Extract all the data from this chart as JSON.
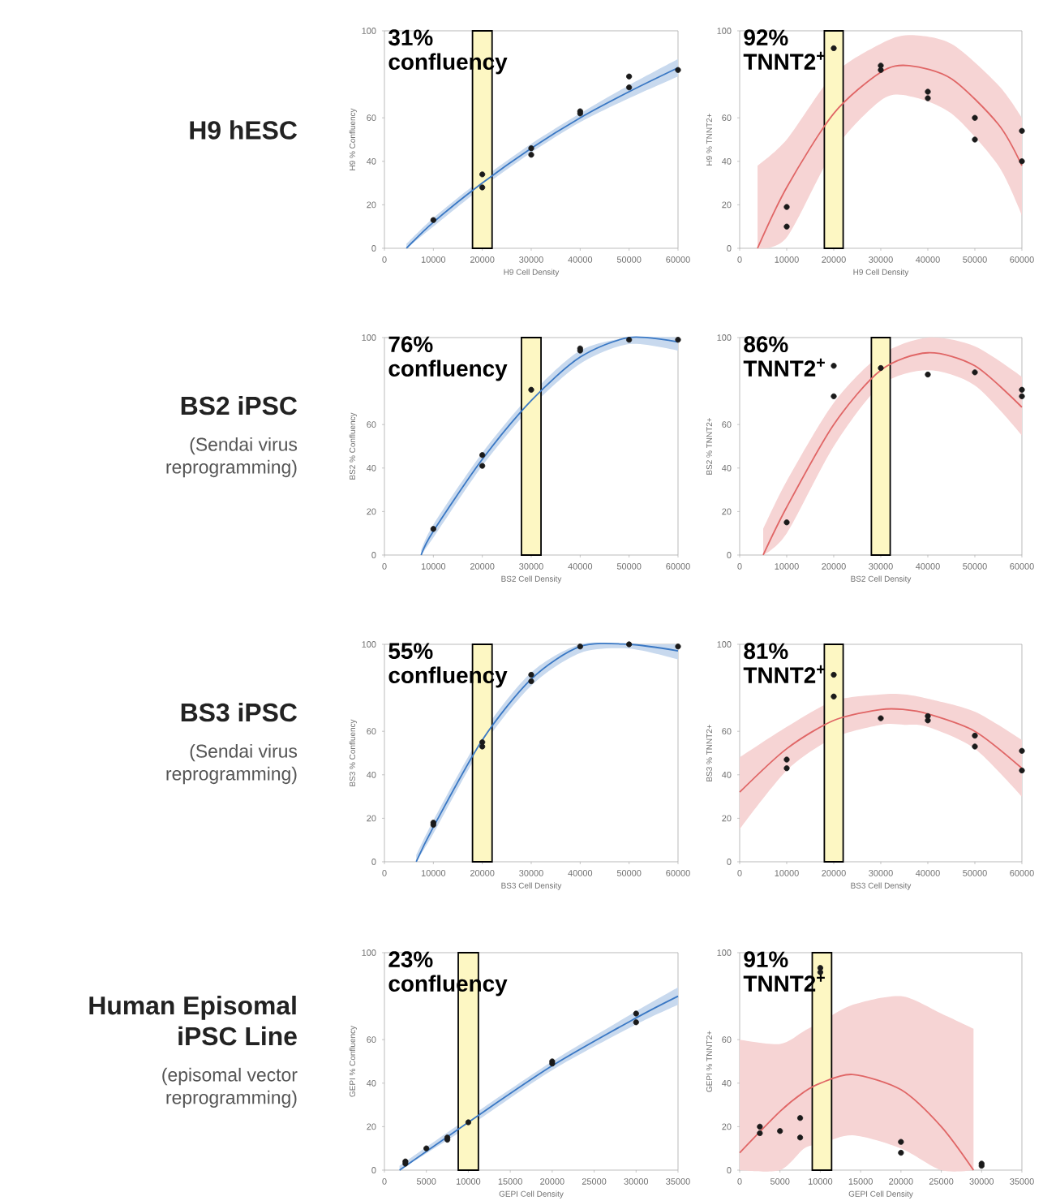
{
  "chart_data": [
    {
      "type": "scatter",
      "title": "H9 hESC",
      "xlabel": "H9 Cell Density",
      "ylabel": "H9 % Confluency",
      "xlim": [
        0,
        60000
      ],
      "ylim": [
        0,
        100
      ],
      "xticks": [
        0,
        10000,
        20000,
        30000,
        40000,
        50000,
        60000
      ],
      "yticks": [
        0,
        20,
        40,
        60,
        100
      ],
      "bands": [
        {
          "axis": "x",
          "from": 18000,
          "to": 22000,
          "label": "31% confluency",
          "color": "#fdf7c3"
        }
      ],
      "series": [
        {
          "type": "line",
          "color": "#3a78c4",
          "x": [
            4500,
            10000,
            20000,
            30000,
            40000,
            50000,
            60000
          ],
          "values": [
            0,
            12,
            30,
            46,
            60,
            72,
            83
          ],
          "lower": [
            0,
            10,
            28,
            44,
            58,
            69,
            79
          ],
          "upper": [
            2,
            14,
            32,
            48,
            62,
            75,
            87
          ]
        },
        {
          "type": "scatter",
          "color": "#1a1a1a",
          "x": [
            10000,
            20000,
            20000,
            30000,
            30000,
            40000,
            40000,
            50000,
            50000,
            60000
          ],
          "values": [
            13,
            34,
            28,
            46,
            43,
            63,
            62,
            79,
            74,
            82
          ]
        }
      ]
    },
    {
      "type": "scatter",
      "xlabel": "H9 Cell Density",
      "ylabel": "H9 % TNNT2+",
      "xlim": [
        0,
        60000
      ],
      "ylim": [
        0,
        100
      ],
      "xticks": [
        0,
        10000,
        20000,
        30000,
        40000,
        50000,
        60000
      ],
      "yticks": [
        0,
        20,
        40,
        60,
        100
      ],
      "bands": [
        {
          "axis": "x",
          "from": 18000,
          "to": 22000,
          "label": "92% TNNT2$^{+}$",
          "color": "#fdf7c3"
        }
      ],
      "series": [
        {
          "type": "line",
          "color": "#e06666",
          "x": [
            3800,
            10000,
            20000,
            30000,
            36000,
            45000,
            55000,
            60000
          ],
          "values": [
            0,
            28,
            62,
            81,
            84,
            78,
            57,
            38
          ],
          "lower": [
            0,
            5,
            45,
            68,
            70,
            62,
            38,
            15
          ],
          "upper": [
            38,
            50,
            80,
            94,
            98,
            94,
            75,
            60
          ]
        },
        {
          "type": "scatter",
          "color": "#1a1a1a",
          "x": [
            10000,
            10000,
            20000,
            30000,
            30000,
            40000,
            40000,
            50000,
            50000,
            60000,
            60000
          ],
          "values": [
            19,
            10,
            92,
            84,
            82,
            72,
            69,
            60,
            50,
            54,
            40
          ]
        }
      ]
    },
    {
      "type": "scatter",
      "title": "BS2 iPSC",
      "subtitle": "(Sendai virus reprogramming)",
      "xlabel": "BS2 Cell Density",
      "ylabel": "BS2 % Confluency",
      "xlim": [
        0,
        60000
      ],
      "ylim": [
        0,
        100
      ],
      "xticks": [
        0,
        10000,
        20000,
        30000,
        40000,
        50000,
        60000
      ],
      "yticks": [
        0,
        20,
        40,
        60,
        100
      ],
      "bands": [
        {
          "axis": "x",
          "from": 28000,
          "to": 32000,
          "label": "76% confluency",
          "color": "#fdf7c3"
        }
      ],
      "series": [
        {
          "type": "line",
          "color": "#3a78c4",
          "x": [
            7500,
            10000,
            20000,
            30000,
            40000,
            50000,
            60000
          ],
          "values": [
            0,
            11,
            44,
            71,
            91,
            100,
            98
          ],
          "lower": [
            0,
            8,
            41,
            68,
            88,
            97,
            94
          ],
          "upper": [
            2,
            14,
            47,
            74,
            94,
            100,
            100
          ]
        },
        {
          "type": "scatter",
          "color": "#1a1a1a",
          "x": [
            10000,
            20000,
            20000,
            30000,
            40000,
            40000,
            50000,
            60000
          ],
          "values": [
            12,
            46,
            41,
            76,
            95,
            94,
            99,
            99
          ]
        }
      ]
    },
    {
      "type": "scatter",
      "xlabel": "BS2 Cell Density",
      "ylabel": "BS2 % TNNT2+",
      "xlim": [
        0,
        60000
      ],
      "ylim": [
        0,
        100
      ],
      "xticks": [
        0,
        10000,
        20000,
        30000,
        40000,
        50000,
        60000
      ],
      "yticks": [
        0,
        20,
        40,
        60,
        100
      ],
      "bands": [
        {
          "axis": "x",
          "from": 28000,
          "to": 32000,
          "label": "86% TNNT2$^{+}$",
          "color": "#fdf7c3"
        }
      ],
      "series": [
        {
          "type": "line",
          "color": "#e06666",
          "x": [
            5000,
            10000,
            20000,
            30000,
            40000,
            50000,
            60000
          ],
          "values": [
            0,
            22,
            60,
            85,
            93,
            87,
            68
          ],
          "lower": [
            0,
            10,
            50,
            78,
            85,
            78,
            55
          ],
          "upper": [
            12,
            34,
            70,
            92,
            100,
            96,
            82
          ]
        },
        {
          "type": "scatter",
          "color": "#1a1a1a",
          "x": [
            10000,
            20000,
            20000,
            30000,
            40000,
            50000,
            60000,
            60000
          ],
          "values": [
            15,
            87,
            73,
            86,
            83,
            84,
            76,
            73
          ]
        }
      ]
    },
    {
      "type": "scatter",
      "title": "BS3 iPSC",
      "subtitle": "(Sendai virus reprogramming)",
      "xlabel": "BS3 Cell Density",
      "ylabel": "BS3 % Confluency",
      "xlim": [
        0,
        60000
      ],
      "ylim": [
        0,
        100
      ],
      "xticks": [
        0,
        10000,
        20000,
        30000,
        40000,
        50000,
        60000
      ],
      "yticks": [
        0,
        20,
        40,
        60,
        100
      ],
      "bands": [
        {
          "axis": "x",
          "from": 18000,
          "to": 22000,
          "label": "55% confluency",
          "color": "#fdf7c3"
        }
      ],
      "series": [
        {
          "type": "line",
          "color": "#3a78c4",
          "x": [
            6500,
            10000,
            20000,
            30000,
            40000,
            50000,
            60000
          ],
          "values": [
            0,
            16,
            56,
            84,
            99,
            100,
            97
          ],
          "lower": [
            0,
            13,
            53,
            81,
            96,
            98,
            93
          ],
          "upper": [
            3,
            19,
            59,
            87,
            100,
            100,
            100
          ]
        },
        {
          "type": "scatter",
          "color": "#1a1a1a",
          "x": [
            10000,
            10000,
            20000,
            20000,
            30000,
            30000,
            40000,
            50000,
            60000
          ],
          "values": [
            18,
            17,
            55,
            53,
            86,
            83,
            99,
            100,
            99
          ]
        }
      ]
    },
    {
      "type": "scatter",
      "xlabel": "BS3 Cell Density",
      "ylabel": "BS3 % TNNT2+",
      "xlim": [
        0,
        60000
      ],
      "ylim": [
        0,
        100
      ],
      "xticks": [
        0,
        10000,
        20000,
        30000,
        40000,
        50000,
        60000
      ],
      "yticks": [
        0,
        20,
        40,
        60,
        100
      ],
      "bands": [
        {
          "axis": "x",
          "from": 18000,
          "to": 22000,
          "label": "81% TNNT2$^{+}$",
          "color": "#fdf7c3"
        }
      ],
      "series": [
        {
          "type": "line",
          "color": "#e06666",
          "x": [
            0,
            10000,
            20000,
            30000,
            35000,
            40000,
            50000,
            60000
          ],
          "values": [
            32,
            52,
            65,
            70,
            70,
            68,
            60,
            43
          ],
          "lower": [
            15,
            42,
            57,
            63,
            63,
            62,
            52,
            30
          ],
          "upper": [
            48,
            62,
            74,
            77,
            77,
            75,
            69,
            56
          ]
        },
        {
          "type": "scatter",
          "color": "#1a1a1a",
          "x": [
            10000,
            10000,
            20000,
            20000,
            30000,
            40000,
            40000,
            50000,
            50000,
            60000,
            60000
          ],
          "values": [
            47,
            43,
            86,
            76,
            66,
            67,
            65,
            58,
            53,
            51,
            42
          ]
        }
      ]
    },
    {
      "type": "scatter",
      "title": "Human Episomal iPSC Line",
      "subtitle": "(episomal vector reprogramming)",
      "xlabel": "GEPI Cell Density",
      "ylabel": "GEPI % Confluency",
      "xlim": [
        0,
        35000
      ],
      "ylim": [
        0,
        100
      ],
      "xticks": [
        0,
        5000,
        10000,
        15000,
        20000,
        25000,
        30000,
        35000
      ],
      "yticks": [
        0,
        20,
        40,
        60,
        100
      ],
      "bands": [
        {
          "axis": "x",
          "from": 8800,
          "to": 11200,
          "label": "23% confluency",
          "color": "#fdf7c3"
        }
      ],
      "series": [
        {
          "type": "line",
          "color": "#3a78c4",
          "x": [
            1800,
            10000,
            20000,
            30000,
            35000
          ],
          "values": [
            0,
            22,
            48,
            70,
            80
          ],
          "lower": [
            0,
            20,
            46,
            67,
            76
          ],
          "upper": [
            2,
            24,
            50,
            73,
            84
          ]
        },
        {
          "type": "scatter",
          "color": "#1a1a1a",
          "x": [
            2500,
            2500,
            5000,
            7500,
            7500,
            10000,
            20000,
            20000,
            30000,
            30000
          ],
          "values": [
            4,
            3,
            10,
            15,
            14,
            22,
            50,
            49,
            72,
            68
          ]
        }
      ]
    },
    {
      "type": "scatter",
      "xlabel": "GEPI Cell Density",
      "ylabel": "GEPI % TNNT2+",
      "xlim": [
        0,
        35000
      ],
      "ylim": [
        0,
        100
      ],
      "xticks": [
        0,
        5000,
        10000,
        15000,
        20000,
        25000,
        30000,
        35000
      ],
      "yticks": [
        0,
        20,
        40,
        60,
        100
      ],
      "bands": [
        {
          "axis": "x",
          "from": 9000,
          "to": 11400,
          "label": "91% TNNT2$^{+}$",
          "color": "#fdf7c3"
        }
      ],
      "series": [
        {
          "type": "line",
          "color": "#e06666",
          "x": [
            0,
            5000,
            8000,
            10000,
            14000,
            20000,
            25000,
            29000
          ],
          "values": [
            8,
            27,
            36,
            40,
            44,
            37,
            20,
            0
          ],
          "lower": [
            0,
            0,
            10,
            12,
            16,
            10,
            0,
            0
          ],
          "upper": [
            60,
            58,
            64,
            68,
            76,
            80,
            72,
            65
          ]
        },
        {
          "type": "scatter",
          "color": "#1a1a1a",
          "x": [
            2500,
            2500,
            5000,
            7500,
            7500,
            10000,
            10000,
            20000,
            20000,
            30000,
            30000
          ],
          "values": [
            20,
            17,
            18,
            24,
            15,
            93,
            91,
            13,
            8,
            3,
            2
          ]
        }
      ]
    }
  ]
}
